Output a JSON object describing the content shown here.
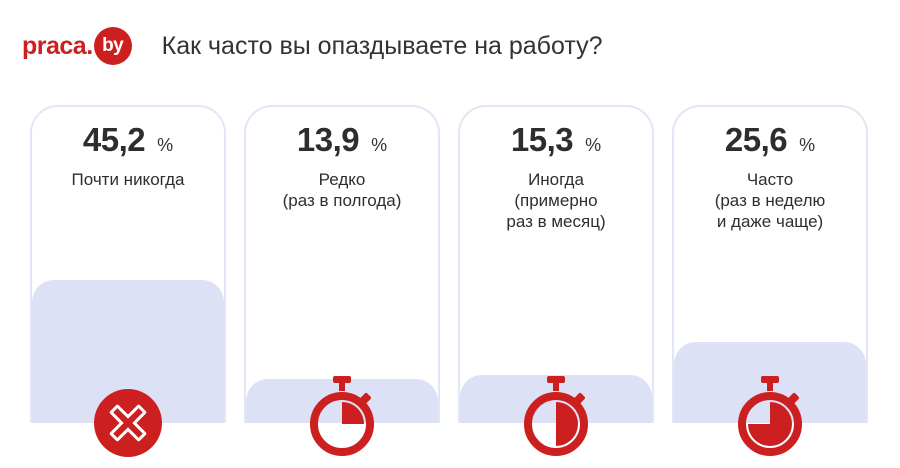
{
  "header": {
    "logo_text": "praca.",
    "logo_badge": "by",
    "title": "Как часто вы опаздываете на работу?"
  },
  "colors": {
    "brand_red": "#cc1f1f",
    "card_border": "#e3e6f6",
    "card_fill": "#dde1f5"
  },
  "chart_data": {
    "type": "bar",
    "title": "Как часто вы опаздываете на работу?",
    "unit": "%",
    "categories": [
      "Почти никогда",
      "Редко\n(раз в полгода)",
      "Иногда\n(примерно\nраз в месяц)",
      "Часто\n(раз в неделю\nи даже чаще)"
    ],
    "values": [
      45.2,
      13.9,
      15.3,
      25.6
    ],
    "value_labels": [
      "45,2",
      "13,9",
      "15,3",
      "25,6"
    ],
    "icons": [
      "cross-icon",
      "stopwatch-quarter-icon",
      "stopwatch-half-icon",
      "stopwatch-three-quarter-icon"
    ]
  }
}
